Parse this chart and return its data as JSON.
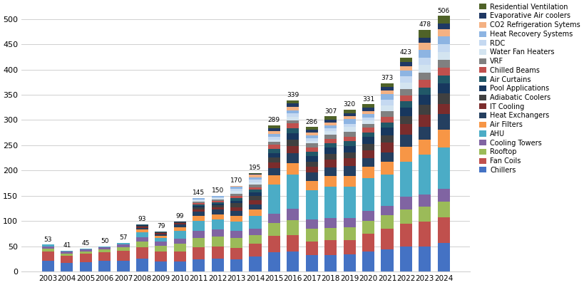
{
  "years": [
    2003,
    2004,
    2005,
    2006,
    2007,
    2008,
    2009,
    2010,
    2011,
    2012,
    2013,
    2014,
    2015,
    2016,
    2017,
    2018,
    2019,
    2020,
    2021,
    2022,
    2023,
    2024
  ],
  "totals": [
    53,
    41,
    45,
    50,
    57,
    93,
    79,
    99,
    145,
    150,
    170,
    195,
    289,
    339,
    286,
    307,
    320,
    331,
    373,
    423,
    478,
    506
  ],
  "categories": [
    "Chillers",
    "Fan Coils",
    "Rooftop",
    "Cooling Towers",
    "AHU",
    "Air Filters",
    "Heat Exchangers",
    "IT Cooling",
    "Adiabatic Coolers",
    "Pool Applications",
    "Air Curtains",
    "Chilled Beams",
    "VRF",
    "Water Fan Heaters",
    "RDC",
    "Heat Recovery Systems",
    "CO2 Refrigeration Sytems",
    "Evaporative Air coolers",
    "Residential Ventilation"
  ],
  "colors": [
    "#4472C4",
    "#C0504D",
    "#9BBB59",
    "#8064A2",
    "#4BACC6",
    "#F79646",
    "#243F60",
    "#7B2C2C",
    "#404040",
    "#17375E",
    "#215868",
    "#C0504D",
    "#808080",
    "#D3E4F0",
    "#C5D9F1",
    "#8DB4E2",
    "#F4B183",
    "#1F3864",
    "#4F6228"
  ],
  "segment_proportions": {
    "Chillers": [
      0.38,
      0.39,
      0.4,
      0.4,
      0.35,
      0.27,
      0.25,
      0.2,
      0.17,
      0.17,
      0.15,
      0.18,
      0.14,
      0.12,
      0.12,
      0.11,
      0.11,
      0.12,
      0.12,
      0.12,
      0.1,
      0.11
    ],
    "Fan Coils": [
      0.34,
      0.34,
      0.33,
      0.32,
      0.32,
      0.24,
      0.25,
      0.2,
      0.17,
      0.17,
      0.15,
      0.15,
      0.12,
      0.1,
      0.1,
      0.1,
      0.09,
      0.11,
      0.11,
      0.11,
      0.1,
      0.1
    ],
    "Rooftop": [
      0.09,
      0.1,
      0.11,
      0.1,
      0.14,
      0.13,
      0.15,
      0.15,
      0.14,
      0.13,
      0.12,
      0.1,
      0.09,
      0.09,
      0.09,
      0.08,
      0.08,
      0.08,
      0.07,
      0.07,
      0.06,
      0.06
    ],
    "Cooling Towers": [
      0.08,
      0.07,
      0.07,
      0.08,
      0.09,
      0.09,
      0.1,
      0.1,
      0.1,
      0.1,
      0.09,
      0.08,
      0.07,
      0.07,
      0.07,
      0.07,
      0.06,
      0.06,
      0.05,
      0.06,
      0.05,
      0.05
    ],
    "AHU": [
      0.06,
      0.05,
      0.04,
      0.04,
      0.05,
      0.11,
      0.1,
      0.15,
      0.14,
      0.13,
      0.12,
      0.15,
      0.21,
      0.21,
      0.21,
      0.21,
      0.2,
      0.2,
      0.17,
      0.17,
      0.16,
      0.16
    ],
    "Air Filters": [
      0.0,
      0.0,
      0.0,
      0.0,
      0.0,
      0.05,
      0.06,
      0.08,
      0.07,
      0.07,
      0.07,
      0.08,
      0.07,
      0.07,
      0.07,
      0.07,
      0.07,
      0.07,
      0.07,
      0.07,
      0.06,
      0.07
    ],
    "Heat Exchangers": [
      0.0,
      0.0,
      0.0,
      0.0,
      0.0,
      0.03,
      0.03,
      0.05,
      0.06,
      0.06,
      0.06,
      0.06,
      0.05,
      0.06,
      0.06,
      0.06,
      0.06,
      0.05,
      0.05,
      0.06,
      0.05,
      0.06
    ],
    "IT Cooling": [
      0.0,
      0.0,
      0.0,
      0.0,
      0.0,
      0.03,
      0.03,
      0.03,
      0.03,
      0.03,
      0.05,
      0.05,
      0.04,
      0.04,
      0.04,
      0.05,
      0.05,
      0.05,
      0.05,
      0.05,
      0.05,
      0.04
    ],
    "Adiabatic Coolers": [
      0.0,
      0.0,
      0.0,
      0.0,
      0.0,
      0.02,
      0.02,
      0.02,
      0.03,
      0.03,
      0.05,
      0.05,
      0.04,
      0.04,
      0.04,
      0.04,
      0.04,
      0.04,
      0.04,
      0.04,
      0.04,
      0.04
    ],
    "Pool Applications": [
      0.0,
      0.0,
      0.0,
      0.0,
      0.0,
      0.02,
      0.01,
      0.01,
      0.02,
      0.02,
      0.03,
      0.04,
      0.03,
      0.04,
      0.04,
      0.04,
      0.04,
      0.04,
      0.04,
      0.04,
      0.04,
      0.04
    ],
    "Air Curtains": [
      0.0,
      0.0,
      0.0,
      0.0,
      0.0,
      0.01,
      0.01,
      0.0,
      0.02,
      0.02,
      0.03,
      0.03,
      0.03,
      0.03,
      0.03,
      0.03,
      0.03,
      0.03,
      0.03,
      0.03,
      0.03,
      0.03
    ],
    "Chilled Beams": [
      0.0,
      0.0,
      0.0,
      0.0,
      0.0,
      0.0,
      0.0,
      0.0,
      0.02,
      0.02,
      0.03,
      0.03,
      0.03,
      0.03,
      0.03,
      0.03,
      0.03,
      0.03,
      0.03,
      0.03,
      0.03,
      0.03
    ],
    "VRF": [
      0.0,
      0.0,
      0.0,
      0.0,
      0.0,
      0.0,
      0.0,
      0.0,
      0.02,
      0.02,
      0.03,
      0.03,
      0.02,
      0.02,
      0.03,
      0.03,
      0.03,
      0.02,
      0.03,
      0.03,
      0.03,
      0.03
    ],
    "Water Fan Heaters": [
      0.0,
      0.0,
      0.0,
      0.0,
      0.0,
      0.0,
      0.0,
      0.0,
      0.02,
      0.02,
      0.03,
      0.03,
      0.02,
      0.02,
      0.02,
      0.02,
      0.03,
      0.02,
      0.03,
      0.03,
      0.03,
      0.03
    ],
    "RDC": [
      0.0,
      0.0,
      0.0,
      0.0,
      0.0,
      0.0,
      0.0,
      0.0,
      0.01,
      0.01,
      0.03,
      0.03,
      0.02,
      0.02,
      0.02,
      0.02,
      0.02,
      0.02,
      0.03,
      0.03,
      0.03,
      0.03
    ],
    "Heat Recovery Systems": [
      0.0,
      0.0,
      0.0,
      0.0,
      0.0,
      0.0,
      0.0,
      0.0,
      0.02,
      0.02,
      0.03,
      0.03,
      0.02,
      0.02,
      0.02,
      0.02,
      0.03,
      0.02,
      0.03,
      0.03,
      0.03,
      0.03
    ],
    "CO2 Refrigeration Sytems": [
      0.0,
      0.0,
      0.0,
      0.0,
      0.0,
      0.0,
      0.0,
      0.0,
      0.0,
      0.0,
      0.01,
      0.03,
      0.02,
      0.02,
      0.02,
      0.02,
      0.02,
      0.02,
      0.02,
      0.02,
      0.03,
      0.03
    ],
    "Evaporative Air coolers": [
      0.0,
      0.0,
      0.0,
      0.0,
      0.0,
      0.0,
      0.0,
      0.0,
      0.0,
      0.0,
      0.0,
      0.01,
      0.02,
      0.02,
      0.02,
      0.02,
      0.02,
      0.02,
      0.02,
      0.02,
      0.02,
      0.02
    ],
    "Residential Ventilation": [
      0.0,
      0.0,
      0.0,
      0.0,
      0.0,
      0.0,
      0.0,
      0.0,
      0.0,
      0.0,
      0.0,
      0.01,
      0.02,
      0.02,
      0.02,
      0.02,
      0.02,
      0.02,
      0.02,
      0.02,
      0.03,
      0.03
    ]
  },
  "ylim": [
    0,
    530
  ],
  "yticks": [
    0,
    50,
    100,
    150,
    200,
    250,
    300,
    350,
    400,
    450,
    500
  ],
  "bar_width": 0.65,
  "figsize": [
    8.2,
    4.0
  ],
  "dpi": 100
}
